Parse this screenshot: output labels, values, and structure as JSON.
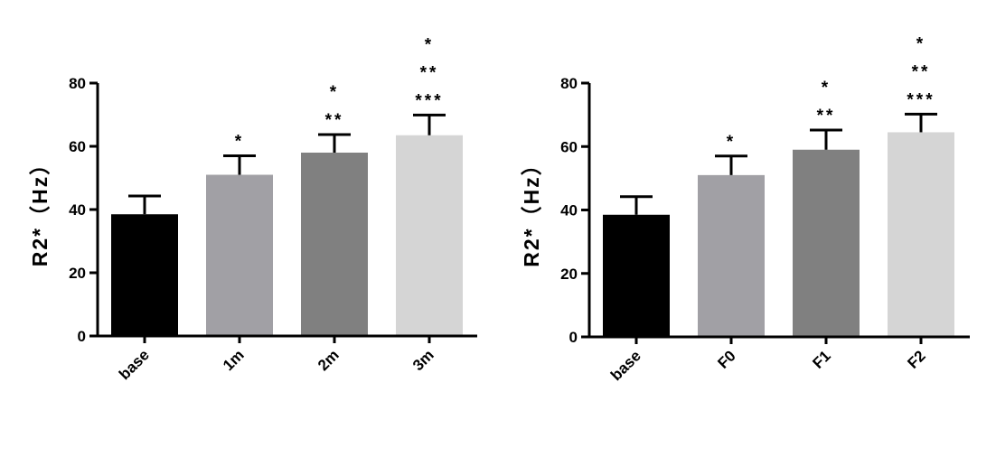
{
  "colors": {
    "axis": "#000000",
    "bars": [
      "#000000",
      "#a1a0a5",
      "#808080",
      "#d5d5d5"
    ]
  },
  "chart_data": [
    {
      "type": "bar",
      "title": "",
      "xlabel": "",
      "ylabel": "R2*（Hz）",
      "ylim": [
        0,
        80
      ],
      "yticks": [
        0,
        20,
        40,
        60,
        80
      ],
      "grid": false,
      "categories": [
        "base",
        "1m",
        "2m",
        "3m"
      ],
      "values": [
        38.5,
        51,
        58,
        63.5
      ],
      "errors": [
        5.8,
        6,
        5.7,
        6.4
      ],
      "significance": [
        [],
        [
          "*"
        ],
        [
          "*",
          "**"
        ],
        [
          "*",
          "**",
          "***"
        ]
      ]
    },
    {
      "type": "bar",
      "title": "",
      "xlabel": "",
      "ylabel": "R2*（Hz）",
      "ylim": [
        0,
        80
      ],
      "yticks": [
        0,
        20,
        40,
        60,
        80
      ],
      "grid": false,
      "categories": [
        "base",
        "F0",
        "F1",
        "F2"
      ],
      "values": [
        38.5,
        51,
        59,
        64.5
      ],
      "errors": [
        5.7,
        6,
        6.2,
        5.7
      ],
      "significance": [
        [],
        [
          "*"
        ],
        [
          "*",
          "**"
        ],
        [
          "*",
          "**",
          "***"
        ]
      ]
    }
  ]
}
